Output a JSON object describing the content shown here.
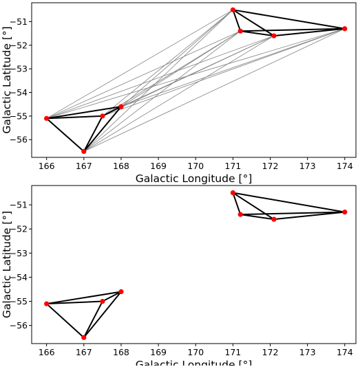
{
  "chart_data": [
    {
      "type": "scatter",
      "title": "",
      "xlabel": "Galactic Longitude [$^{\\circ}$]",
      "ylabel": "Galactic Latitude [$^{\\circ}$]",
      "xlabel_text": "Galactic Longitude [°]",
      "ylabel_text": "Galactic Latitude [°]",
      "xlim": [
        165.6,
        174.3
      ],
      "ylim": [
        -56.75,
        -50.2
      ],
      "xticks": [
        166,
        167,
        168,
        169,
        170,
        171,
        172,
        173,
        174
      ],
      "yticks": [
        -51,
        -52,
        -53,
        -54,
        -55,
        -56
      ],
      "grid": false,
      "marker_color": "#ff0000",
      "edge_color": "#000000",
      "cross_edge_color": "#808080",
      "points": [
        {
          "x": 166.0,
          "y": -55.1,
          "cluster": "A"
        },
        {
          "x": 167.0,
          "y": -56.5,
          "cluster": "A"
        },
        {
          "x": 167.5,
          "y": -55.0,
          "cluster": "A"
        },
        {
          "x": 168.0,
          "y": -54.6,
          "cluster": "A"
        },
        {
          "x": 171.0,
          "y": -50.5,
          "cluster": "B"
        },
        {
          "x": 171.2,
          "y": -51.4,
          "cluster": "B"
        },
        {
          "x": 172.1,
          "y": -51.6,
          "cluster": "B"
        },
        {
          "x": 174.0,
          "y": -51.3,
          "cluster": "B"
        }
      ],
      "edges": [
        [
          0,
          1
        ],
        [
          0,
          2
        ],
        [
          0,
          3
        ],
        [
          1,
          2
        ],
        [
          1,
          3
        ],
        [
          2,
          3
        ],
        [
          4,
          5
        ],
        [
          4,
          6
        ],
        [
          4,
          7
        ],
        [
          5,
          6
        ],
        [
          5,
          7
        ],
        [
          6,
          7
        ]
      ],
      "cross_edges": true
    },
    {
      "type": "scatter",
      "title": "",
      "xlabel": "Galactic Longitude [$^{\\circ}$]",
      "ylabel": "Galactic Latitude [$^{\\circ}$]",
      "xlabel_text": "Galactic Longitude [°]",
      "ylabel_text": "Galactic Latitude [°]",
      "xlim": [
        165.6,
        174.3
      ],
      "ylim": [
        -56.75,
        -50.2
      ],
      "xticks": [
        166,
        167,
        168,
        169,
        170,
        171,
        172,
        173,
        174
      ],
      "yticks": [
        -51,
        -52,
        -53,
        -54,
        -55,
        -56
      ],
      "grid": false,
      "marker_color": "#ff0000",
      "edge_color": "#000000",
      "points": [
        {
          "x": 166.0,
          "y": -55.1,
          "cluster": "A"
        },
        {
          "x": 167.0,
          "y": -56.5,
          "cluster": "A"
        },
        {
          "x": 167.5,
          "y": -55.0,
          "cluster": "A"
        },
        {
          "x": 168.0,
          "y": -54.6,
          "cluster": "A"
        },
        {
          "x": 171.0,
          "y": -50.5,
          "cluster": "B"
        },
        {
          "x": 171.2,
          "y": -51.4,
          "cluster": "B"
        },
        {
          "x": 172.1,
          "y": -51.6,
          "cluster": "B"
        },
        {
          "x": 174.0,
          "y": -51.3,
          "cluster": "B"
        }
      ],
      "edges": [
        [
          0,
          1
        ],
        [
          0,
          2
        ],
        [
          0,
          3
        ],
        [
          1,
          2
        ],
        [
          1,
          3
        ],
        [
          2,
          3
        ],
        [
          4,
          5
        ],
        [
          4,
          6
        ],
        [
          4,
          7
        ],
        [
          5,
          6
        ],
        [
          5,
          7
        ],
        [
          6,
          7
        ]
      ],
      "cross_edges": false
    }
  ]
}
